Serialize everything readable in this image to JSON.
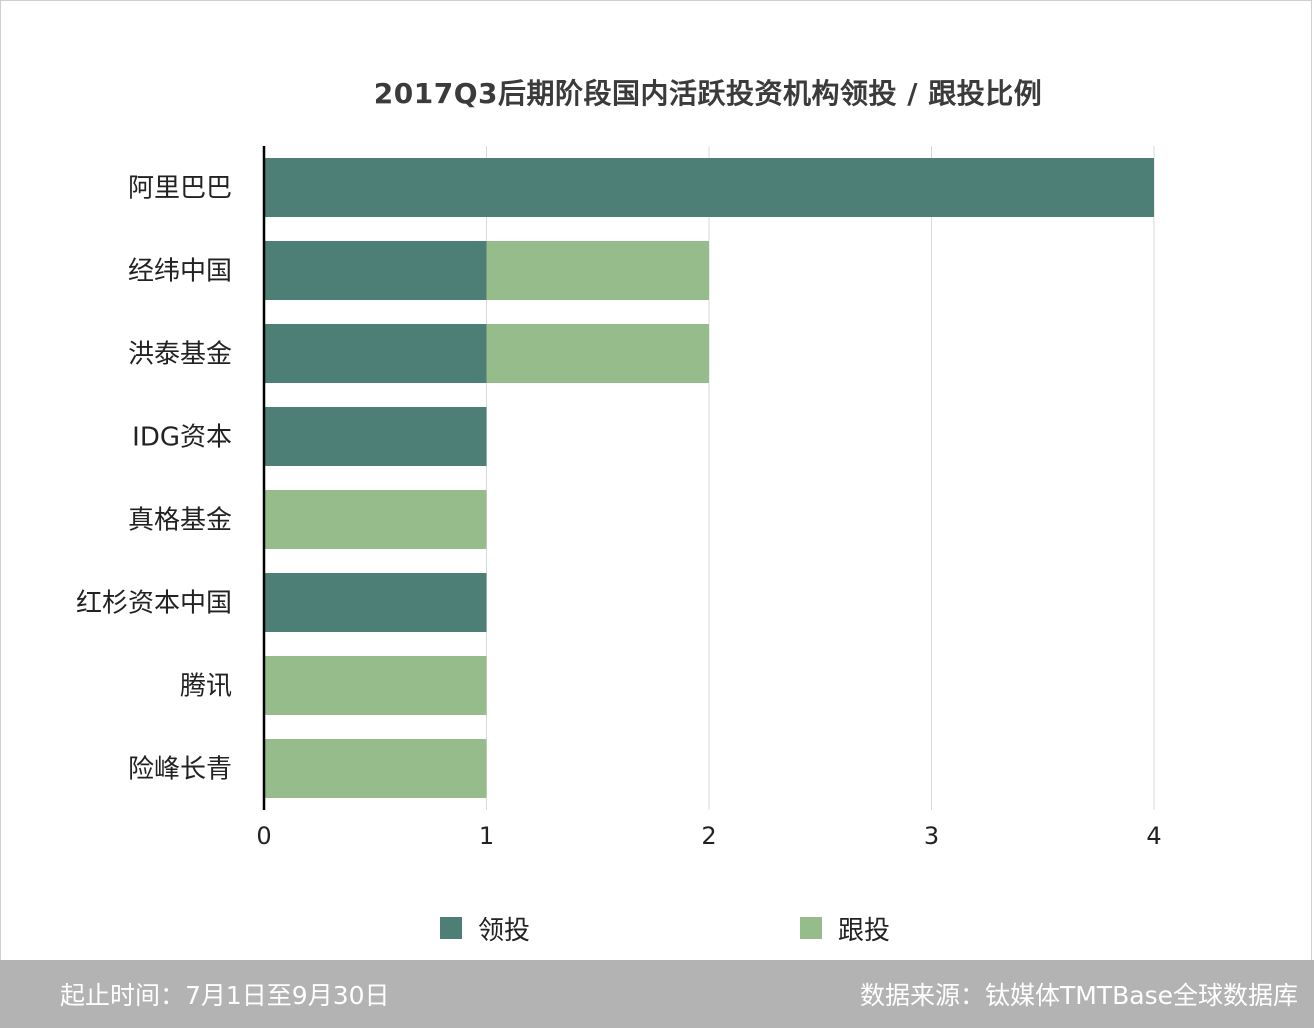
{
  "chart_data": {
    "type": "bar",
    "orientation": "horizontal",
    "stacked": true,
    "title": "2017Q3后期阶段国内活跃投资机构领投 / 跟投比例",
    "categories": [
      "阿里巴巴",
      "经纬中国",
      "洪泰基金",
      "IDG资本",
      "真格基金",
      "红杉资本中国",
      "腾讯",
      "险峰长青"
    ],
    "series": [
      {
        "name": "领投",
        "color": "#4e7f76",
        "values": [
          4,
          1,
          1,
          1,
          0,
          1,
          0,
          0
        ]
      },
      {
        "name": "跟投",
        "color": "#96bc8b",
        "values": [
          0,
          1,
          1,
          0,
          1,
          0,
          1,
          1
        ]
      }
    ],
    "xlim": [
      0,
      4
    ],
    "xticks": [
      "0",
      "1",
      "2",
      "3",
      "4"
    ],
    "grid": true,
    "legend_position": "bottom"
  },
  "footer": {
    "period": "起止时间：7月1日至9月30日",
    "source": "数据来源：钛媒体TMTBase全球数据库"
  }
}
